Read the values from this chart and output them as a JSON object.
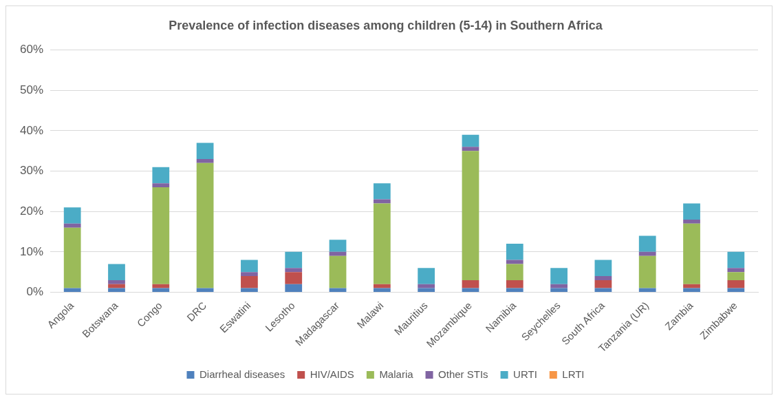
{
  "chart_data": {
    "type": "bar",
    "title": "Prevalence of infection diseases among children (5-14) in Southern Africa",
    "stacked": true,
    "legend": "bottom",
    "grid": "y",
    "categories": [
      "Angola",
      "Botswana",
      "Congo",
      "DRC",
      "Eswatini",
      "Lesotho",
      "Madagascar",
      "Malawi",
      "Mauritius",
      "Mozambique",
      "Namibia",
      "Seychelles",
      "South Africa",
      "Tanzania (UR)",
      "Zambia",
      "Zimbabwe"
    ],
    "ylim": [
      0,
      60
    ],
    "yticks": [
      {
        "value": 0,
        "label": "0%"
      },
      {
        "value": 10,
        "label": "10%"
      },
      {
        "value": 20,
        "label": "20%"
      },
      {
        "value": 30,
        "label": "30%"
      },
      {
        "value": 40,
        "label": "40%"
      },
      {
        "value": 50,
        "label": "50%"
      },
      {
        "value": 60,
        "label": "60%"
      }
    ],
    "series": [
      {
        "name": "Diarrheal diseases",
        "color": "#4f81bd",
        "values": [
          1,
          1,
          1,
          1,
          1,
          2,
          1,
          1,
          1,
          1,
          1,
          1,
          1,
          1,
          1,
          1
        ]
      },
      {
        "name": "HIV/AIDS",
        "color": "#c0504d",
        "values": [
          0,
          1,
          1,
          0,
          3,
          3,
          0,
          1,
          0,
          2,
          2,
          0,
          2,
          0,
          1,
          2
        ]
      },
      {
        "name": "Malaria",
        "color": "#9bbb59",
        "values": [
          15,
          0,
          24,
          31,
          0,
          0,
          8,
          20,
          0,
          32,
          4,
          0,
          0,
          8,
          15,
          2
        ]
      },
      {
        "name": "Other STIs",
        "color": "#8064a2",
        "values": [
          1,
          1,
          1,
          1,
          1,
          1,
          1,
          1,
          1,
          1,
          1,
          1,
          1,
          1,
          1,
          1
        ]
      },
      {
        "name": "URTI",
        "color": "#4bacc6",
        "values": [
          4,
          4,
          4,
          4,
          3,
          4,
          3,
          4,
          4,
          3,
          4,
          4,
          4,
          4,
          4,
          4
        ]
      },
      {
        "name": "LRTI",
        "color": "#f79646",
        "values": [
          0,
          0,
          0,
          0,
          0,
          0,
          0,
          0,
          0,
          0,
          0,
          0,
          0,
          0,
          0,
          0
        ]
      }
    ]
  }
}
